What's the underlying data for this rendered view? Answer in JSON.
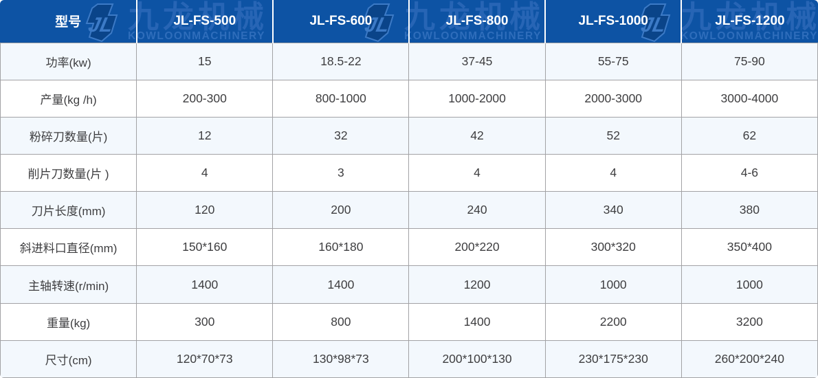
{
  "table": {
    "header": {
      "model_label": "型号",
      "models": [
        "JL-FS-500",
        "JL-FS-600",
        "JL-FS-800",
        "JL-FS-1000",
        "JL-FS-1200"
      ]
    },
    "rows": [
      {
        "label": "功率(kw)",
        "values": [
          "15",
          "18.5-22",
          "37-45",
          "55-75",
          "75-90"
        ]
      },
      {
        "label": "产量(kg /h)",
        "values": [
          "200-300",
          "800-1000",
          "1000-2000",
          "2000-3000",
          "3000-4000"
        ]
      },
      {
        "label": "粉碎刀数量(片)",
        "values": [
          "12",
          "32",
          "42",
          "52",
          "62"
        ]
      },
      {
        "label": "削片刀数量(片 )",
        "values": [
          "4",
          "3",
          "4",
          "4",
          "4-6"
        ]
      },
      {
        "label": "刀片长度(mm)",
        "values": [
          "120",
          "200",
          "240",
          "340",
          "380"
        ]
      },
      {
        "label": "斜进料口直径(mm)",
        "values": [
          "150*160",
          "160*180",
          "200*220",
          "300*320",
          "350*400"
        ]
      },
      {
        "label": "主轴转速(r/min)",
        "values": [
          "1400",
          "1400",
          "1200",
          "1000",
          "1000"
        ]
      },
      {
        "label": "重量(kg)",
        "values": [
          "300",
          "800",
          "1400",
          "2200",
          "3200"
        ]
      },
      {
        "label": "尺寸(cm)",
        "values": [
          "120*70*73",
          "130*98*73",
          "200*100*130",
          "230*175*230",
          "260*200*240"
        ]
      }
    ],
    "watermark": {
      "cn": "九龙机械",
      "en": "KOWLOONMACHINERY"
    },
    "colors": {
      "header_bg": "#0d53a4",
      "header_text": "#ffffff",
      "row_alt_bg": "#f3f8fd",
      "row_bg": "#ffffff",
      "grid_line": "#a2a2a5",
      "body_text": "#3e3e40",
      "watermark_cn": "#2765b5",
      "watermark_en": "#2e6dbb",
      "logo_dark": "#0a4489",
      "logo_light": "#3c7ac6"
    }
  }
}
